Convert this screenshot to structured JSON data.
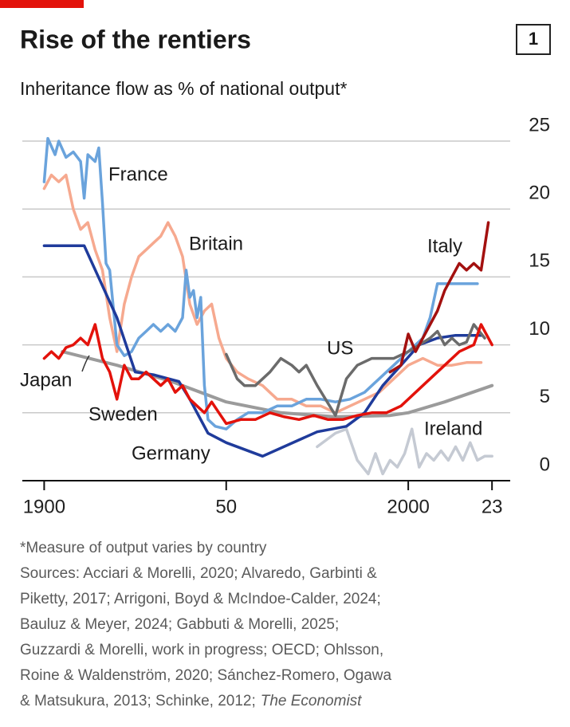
{
  "chart_data": {
    "type": "line",
    "title": "Rise of the rentiers",
    "badge": "1",
    "subtitle": "Inheritance flow as % of national output*",
    "footnote": "*Measure of output varies by country",
    "sources": [
      "Sources: Acciari & Morelli, 2020; Alvaredo, Garbinti &",
      "Piketty, 2017; Arrigoni, Boyd & McIndoe-Calder, 2024;",
      "Bauluz & Meyer, 2024; Gabbuti & Morelli, 2025;",
      "Guzzardi & Morelli, work in progress; OECD; Ohlsson,",
      "Roine & Waldenström, 2020; Sánchez-Romero, Ogawa",
      "& Matsukura, 2013; Schinke, 2012;"
    ],
    "sources_italic": "The Economist",
    "xlim": [
      1894,
      2028
    ],
    "xticks": [
      1900,
      {
        "value": 1950,
        "label": "50"
      },
      2000,
      {
        "value": 2023,
        "label": "23"
      }
    ],
    "ylim": [
      0,
      25
    ],
    "yticks": [
      0,
      5,
      10,
      15,
      20,
      25
    ],
    "grid": true,
    "series": [
      {
        "name": "Ireland",
        "color": "#c5cad3",
        "x": [
          1975,
          1980,
          1983,
          1986,
          1989,
          1991,
          1993,
          1995,
          1997,
          1999,
          2001,
          2003,
          2005,
          2007,
          2009,
          2011,
          2013,
          2015,
          2017,
          2019,
          2021,
          2023
        ],
        "values": [
          2.5,
          3.5,
          3.8,
          1.5,
          0.5,
          2,
          0.5,
          1.5,
          1,
          2,
          3.8,
          1,
          2,
          1.5,
          2.2,
          1.5,
          2.5,
          1.5,
          2.8,
          1.5,
          1.8,
          1.8
        ]
      },
      {
        "name": "Japan",
        "color": "#9b9b9b",
        "x": [
          1905,
          1920,
          1935,
          1950,
          1965,
          1980,
          1995,
          2000,
          2010,
          2023
        ],
        "values": [
          9.5,
          8.5,
          7.3,
          5.8,
          5,
          4.7,
          4.8,
          5,
          5.8,
          7
        ]
      },
      {
        "name": "Britain",
        "color": "#f6a98f",
        "x": [
          1900,
          1902,
          1904,
          1906,
          1908,
          1910,
          1912,
          1914,
          1916,
          1918,
          1920,
          1922,
          1924,
          1926,
          1928,
          1930,
          1932,
          1934,
          1936,
          1938,
          1940,
          1942,
          1944,
          1946,
          1948,
          1950,
          1953,
          1956,
          1960,
          1964,
          1968,
          1972,
          1976,
          1980,
          1984,
          1988,
          1992,
          1996,
          2000,
          2004,
          2008,
          2012,
          2016,
          2020
        ],
        "values": [
          21.5,
          22.5,
          22,
          22.5,
          20,
          18.5,
          19,
          17,
          15.5,
          12,
          9.5,
          13,
          15,
          16.5,
          17,
          17.5,
          18,
          19,
          18,
          16.5,
          13,
          11.5,
          12.5,
          13,
          10.5,
          9,
          8,
          7.5,
          7,
          6,
          6,
          5.5,
          5.5,
          5,
          5.5,
          6,
          6.5,
          7.5,
          8.5,
          9,
          8.5,
          8.5,
          8.7,
          8.7
        ]
      },
      {
        "name": "France",
        "color": "#6aa3dc",
        "x": [
          1900,
          1901,
          1903,
          1904,
          1906,
          1908,
          1910,
          1911,
          1912,
          1914,
          1915,
          1916,
          1917,
          1918,
          1920,
          1922,
          1924,
          1926,
          1928,
          1930,
          1932,
          1934,
          1936,
          1938,
          1939,
          1940,
          1941,
          1942,
          1943,
          1944,
          1945,
          1947,
          1950,
          1953,
          1956,
          1960,
          1964,
          1968,
          1972,
          1976,
          1980,
          1984,
          1988,
          1992,
          1996,
          2000,
          2004,
          2006,
          2008,
          2010,
          2014,
          2019
        ],
        "values": [
          22,
          25.2,
          24,
          25,
          23.8,
          24.2,
          23.5,
          20.8,
          24,
          23.5,
          24.5,
          20.5,
          16,
          15.5,
          10,
          9.2,
          9.5,
          10.5,
          11,
          11.5,
          11,
          11.5,
          11,
          12,
          15.5,
          13.5,
          14,
          12,
          13.5,
          7,
          4.5,
          4,
          3.8,
          4.5,
          5,
          5,
          5.5,
          5.5,
          6,
          6,
          5.8,
          6,
          6.5,
          7.5,
          8.5,
          9.5,
          10.5,
          12,
          14.5,
          14.5,
          14.5,
          14.5
        ]
      },
      {
        "name": "Germany",
        "color": "#1f3b9b",
        "x": [
          1900,
          1911,
          1920,
          1925,
          1930,
          1937,
          1940,
          1945,
          1950,
          1960,
          1970,
          1975,
          1983,
          1988,
          1993,
          1998,
          2003,
          2008,
          2013,
          2020
        ],
        "values": [
          17.3,
          17.3,
          12,
          8,
          7.8,
          7.3,
          6,
          3.5,
          2.8,
          1.8,
          3,
          3.6,
          4,
          5,
          7,
          8.5,
          10,
          10.5,
          10.7,
          10.7
        ]
      },
      {
        "name": "US",
        "color": "#6b6b6b",
        "x": [
          1950,
          1953,
          1955,
          1958,
          1962,
          1965,
          1968,
          1970,
          1972,
          1975,
          1980,
          1983,
          1986,
          1990,
          1993,
          1996,
          2000,
          2003,
          2006,
          2008,
          2010,
          2012,
          2014,
          2016,
          2018,
          2021
        ],
        "values": [
          9.3,
          7.5,
          7,
          7,
          8,
          9,
          8.5,
          8,
          8.5,
          7,
          4.8,
          7.5,
          8.5,
          9,
          9,
          9,
          9.5,
          10,
          10.5,
          11,
          10,
          10.5,
          10,
          10.2,
          11.5,
          10.5
        ]
      },
      {
        "name": "Sweden",
        "color": "#e3120b",
        "x": [
          1900,
          1902,
          1904,
          1906,
          1908,
          1910,
          1912,
          1914,
          1916,
          1918,
          1920,
          1922,
          1924,
          1926,
          1928,
          1930,
          1932,
          1934,
          1936,
          1938,
          1940,
          1942,
          1944,
          1946,
          1948,
          1950,
          1954,
          1958,
          1962,
          1966,
          1970,
          1974,
          1978,
          1982,
          1986,
          1990,
          1994,
          1998,
          2002,
          2006,
          2010,
          2014,
          2018,
          2020,
          2021,
          2023
        ],
        "values": [
          9,
          9.5,
          9,
          9.8,
          10,
          10.5,
          10,
          11.5,
          9,
          8,
          6,
          8.5,
          7.5,
          7.5,
          8,
          7.5,
          7,
          7.5,
          6.5,
          7,
          6,
          5.5,
          5,
          5.8,
          5,
          4.2,
          4.5,
          4.5,
          5,
          4.7,
          4.5,
          4.8,
          4.5,
          4.5,
          4.8,
          5,
          5,
          5.5,
          6.5,
          7.5,
          8.5,
          9.5,
          10,
          11.5,
          11,
          10
        ]
      },
      {
        "name": "Italy",
        "color": "#a3100f",
        "x": [
          1995,
          1998,
          2000,
          2002,
          2005,
          2008,
          2010,
          2012,
          2014,
          2016,
          2018,
          2020,
          2022
        ],
        "values": [
          8,
          8.5,
          10.8,
          9.5,
          11,
          12.5,
          14,
          15,
          16,
          15.5,
          16,
          15.5,
          19
        ]
      }
    ]
  }
}
